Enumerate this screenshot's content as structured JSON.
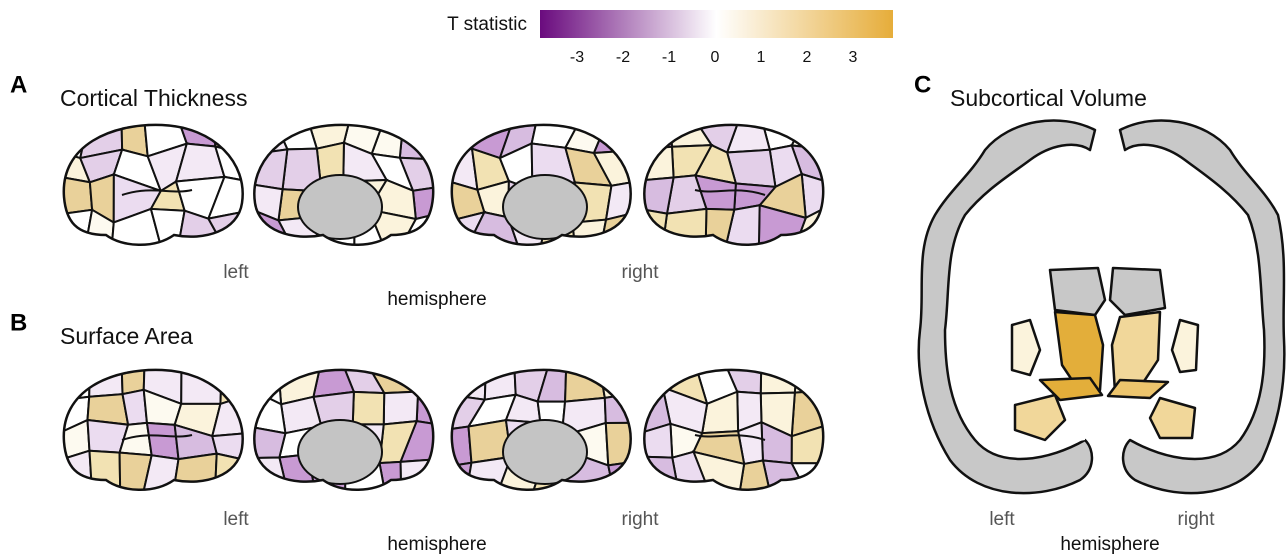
{
  "legend": {
    "title": "T statistic",
    "ticks": [
      "-3",
      "-2",
      "-1",
      "0",
      "1",
      "2",
      "3"
    ]
  },
  "panels": [
    {
      "letter": "A",
      "title": "Cortical Thickness",
      "x_labels": [
        "left",
        "right"
      ],
      "x_title": "hemisphere"
    },
    {
      "letter": "B",
      "title": "Surface Area",
      "x_labels": [
        "left",
        "right"
      ],
      "x_title": "hemisphere"
    },
    {
      "letter": "C",
      "title": "Subcortical Volume",
      "x_labels": [
        "left",
        "right"
      ],
      "x_title": "hemisphere"
    }
  ]
}
